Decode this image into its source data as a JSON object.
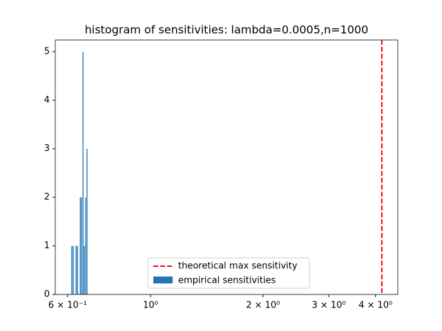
{
  "chart_data": {
    "type": "histogram",
    "title": "histogram of sensitivities: lambda=0.0005,n=1000",
    "bins": [
      0.613,
      0.6185,
      0.624,
      0.6295,
      0.635,
      0.6405,
      0.646,
      0.6515,
      0.657,
      0.6625,
      0.668,
      0.6735,
      0.679
    ],
    "counts": [
      1,
      1,
      0,
      1,
      1,
      0,
      2,
      2,
      5,
      1,
      2,
      3
    ],
    "name": "empirical sensitivities",
    "color": "#1f77b4",
    "vline": {
      "name": "theoretical max sensitivity",
      "x": 4.16,
      "color": "#ff0000"
    },
    "xscale": "log",
    "xlim": [
      0.556,
      4.59
    ],
    "xticks": [
      {
        "value": 0.6,
        "label": "6 × 10⁻¹"
      },
      {
        "value": 1,
        "label": "10⁰"
      },
      {
        "value": 2,
        "label": "2 × 10⁰"
      },
      {
        "value": 3,
        "label": "3 × 10⁰"
      },
      {
        "value": 4,
        "label": "4 × 10⁰"
      }
    ],
    "ylim": [
      0,
      5.24
    ],
    "yticks": [
      0,
      1,
      2,
      3,
      4,
      5
    ],
    "legend": "lower center"
  }
}
